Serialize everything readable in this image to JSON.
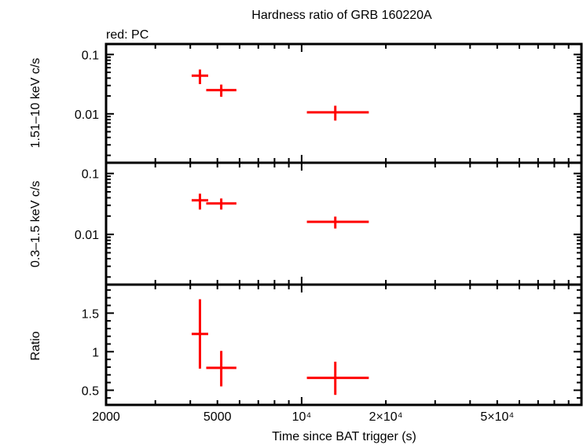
{
  "chart_data": {
    "type": "scatter",
    "title": "Hardness ratio of GRB 160220A",
    "subtitle": "red: PC",
    "xlabel": "Time since BAT trigger (s)",
    "xscale": "log",
    "xlim": [
      2000,
      100000
    ],
    "xticks": [
      {
        "value": 2000,
        "label": "2000"
      },
      {
        "value": 5000,
        "label": "5000"
      },
      {
        "value": 10000,
        "label": "10⁴"
      },
      {
        "value": 20000,
        "label": "2×10⁴"
      },
      {
        "value": 50000,
        "label": "5×10⁴"
      }
    ],
    "series_color": "#ff0000",
    "grid": false,
    "panels": [
      {
        "ylabel": "1.51–10 keV c/s",
        "yscale": "log",
        "ylim": [
          0.0015,
          0.15
        ],
        "yticks": [
          {
            "value": 0.1,
            "label": "0.1"
          },
          {
            "value": 0.01,
            "label": "0.01"
          }
        ],
        "points": [
          {
            "x": 4330,
            "xmin": 4045,
            "xmax": 4635,
            "y": 0.044,
            "ymin": 0.0317,
            "ymax": 0.0558
          },
          {
            "x": 5160,
            "xmin": 4560,
            "xmax": 5845,
            "y": 0.0251,
            "ymin": 0.0194,
            "ymax": 0.0311
          },
          {
            "x": 13190,
            "xmin": 10440,
            "xmax": 17380,
            "y": 0.0106,
            "ymin": 0.0077,
            "ymax": 0.0137
          }
        ]
      },
      {
        "ylabel": "0.3–1.5 keV c/s",
        "yscale": "log",
        "ylim": [
          0.0015,
          0.15
        ],
        "yticks": [
          {
            "value": 0.1,
            "label": "0.1"
          },
          {
            "value": 0.01,
            "label": "0.01"
          }
        ],
        "points": [
          {
            "x": 4330,
            "xmin": 4045,
            "xmax": 4635,
            "y": 0.0363,
            "ymin": 0.0256,
            "ymax": 0.0466
          },
          {
            "x": 5160,
            "xmin": 4560,
            "xmax": 5845,
            "y": 0.0322,
            "ymin": 0.0256,
            "ymax": 0.0389
          },
          {
            "x": 13190,
            "xmin": 10440,
            "xmax": 17380,
            "y": 0.0161,
            "ymin": 0.0125,
            "ymax": 0.0196
          }
        ]
      },
      {
        "ylabel": "Ratio",
        "yscale": "linear",
        "ylim": [
          0.31,
          1.87
        ],
        "yticks": [
          {
            "value": 1.5,
            "label": "1.5"
          },
          {
            "value": 1,
            "label": "1"
          },
          {
            "value": 0.5,
            "label": "0.5"
          }
        ],
        "points": [
          {
            "x": 4330,
            "xmin": 4045,
            "xmax": 4635,
            "y": 1.23,
            "ymin": 0.78,
            "ymax": 1.68
          },
          {
            "x": 5160,
            "xmin": 4560,
            "xmax": 5845,
            "y": 0.79,
            "ymin": 0.55,
            "ymax": 1.01
          },
          {
            "x": 13190,
            "xmin": 10440,
            "xmax": 17380,
            "y": 0.66,
            "ymin": 0.44,
            "ymax": 0.87
          }
        ]
      }
    ]
  }
}
